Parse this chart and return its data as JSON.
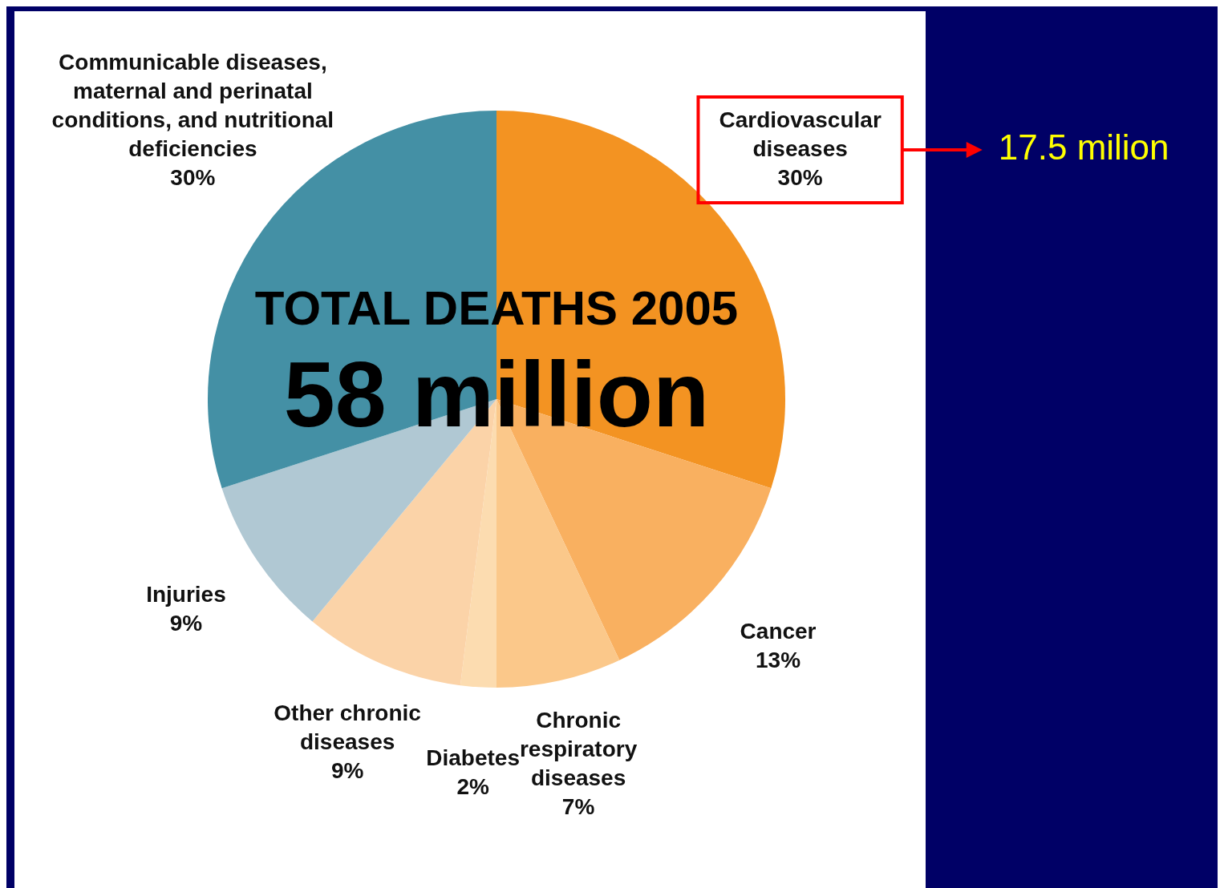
{
  "chart_data": {
    "type": "pie",
    "title": "TOTAL DEATHS 2005",
    "subtitle": "58 million",
    "categories": [
      "Cardiovascular diseases",
      "Cancer",
      "Chronic respiratory diseases",
      "Diabetes",
      "Other chronic diseases",
      "Injuries",
      "Communicable diseases, maternal and perinatal conditions, and nutritional deficiencies"
    ],
    "values": [
      30,
      13,
      7,
      2,
      9,
      9,
      30
    ],
    "value_labels": [
      "30%",
      "13%",
      "7%",
      "2%",
      "9%",
      "9%",
      "30%"
    ],
    "colors": [
      "#f39322",
      "#f9b060",
      "#fbc88a",
      "#fcdcb0",
      "#fbd3a8",
      "#b0c8d3",
      "#4490a5"
    ],
    "annotations": [
      {
        "text": "17.5 milion",
        "x": "Cardiovascular diseases"
      }
    ],
    "legend": false
  }
}
